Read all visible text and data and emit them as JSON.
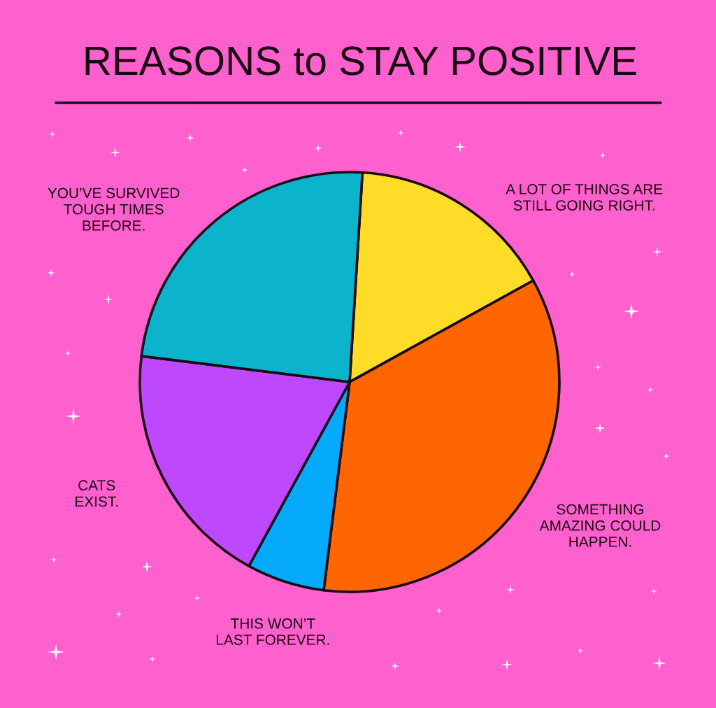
{
  "chart_data": {
    "type": "pie",
    "title": "REASONS to STAY POSITIVE",
    "categories": [
      "A LOT OF THINGS ARE\nSTILL GOING RIGHT.",
      "SOMETHING\nAMAZING COULD\nHAPPEN.",
      "THIS WON’T\nLAST FOREVER.",
      "CATS\nEXIST.",
      "YOU’VE SURVIVED\nTOUGH TIMES\nBEFORE."
    ],
    "values": [
      16,
      35,
      6,
      19,
      24
    ],
    "colors": [
      "#fedc27",
      "#ff6500",
      "#06aafb",
      "#be48fd",
      "#0bb4cc"
    ]
  }
}
